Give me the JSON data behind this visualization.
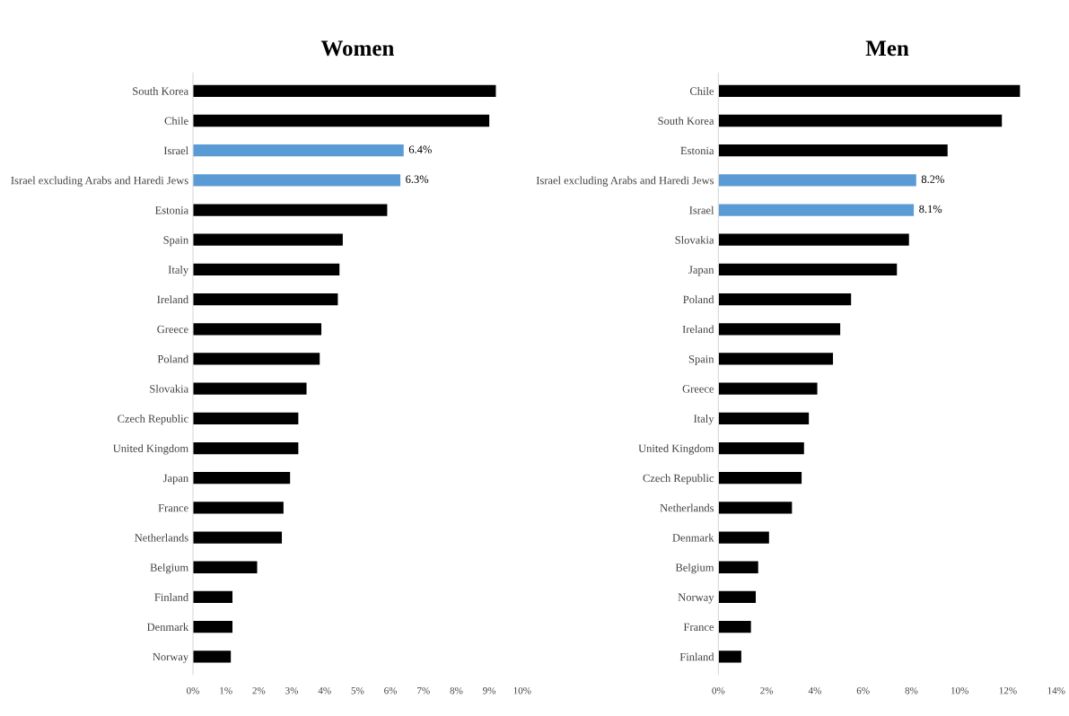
{
  "chart_data": [
    {
      "type": "bar",
      "orientation": "horizontal",
      "title": "Women",
      "categories": [
        "South Korea",
        "Chile",
        "Israel",
        "Israel excluding Arabs and Haredi Jews",
        "Estonia",
        "Spain",
        "Italy",
        "Ireland",
        "Greece",
        "Poland",
        "Slovakia",
        "Czech Republic",
        "United Kingdom",
        "Japan",
        "France",
        "Netherlands",
        "Belgium",
        "Finland",
        "Denmark",
        "Norway"
      ],
      "values": [
        9.2,
        9.0,
        6.4,
        6.3,
        5.9,
        4.55,
        4.45,
        4.4,
        3.9,
        3.85,
        3.45,
        3.2,
        3.2,
        2.95,
        2.75,
        2.7,
        1.95,
        1.2,
        1.2,
        1.15
      ],
      "colors": [
        "#000000",
        "#000000",
        "#5b9bd5",
        "#5b9bd5",
        "#000000",
        "#000000",
        "#000000",
        "#000000",
        "#000000",
        "#000000",
        "#000000",
        "#000000",
        "#000000",
        "#000000",
        "#000000",
        "#000000",
        "#000000",
        "#000000",
        "#000000",
        "#000000"
      ],
      "value_labels": [
        null,
        null,
        "6.4%",
        "6.3%",
        null,
        null,
        null,
        null,
        null,
        null,
        null,
        null,
        null,
        null,
        null,
        null,
        null,
        null,
        null,
        null
      ],
      "xlim": [
        0,
        10
      ],
      "xticks": [
        {
          "value": 0,
          "label": "0%"
        },
        {
          "value": 1,
          "label": "1%"
        },
        {
          "value": 2,
          "label": "2%"
        },
        {
          "value": 3,
          "label": "3%"
        },
        {
          "value": 4,
          "label": "4%"
        },
        {
          "value": 5,
          "label": "5%"
        },
        {
          "value": 6,
          "label": "6%"
        },
        {
          "value": 7,
          "label": "7%"
        },
        {
          "value": 8,
          "label": "8%"
        },
        {
          "value": 9,
          "label": "9%"
        },
        {
          "value": 10,
          "label": "10%"
        }
      ],
      "grid": false,
      "legend": false
    },
    {
      "type": "bar",
      "orientation": "horizontal",
      "title": "Men",
      "categories": [
        "Chile",
        "South Korea",
        "Estonia",
        "Israel excluding Arabs and Haredi Jews",
        "Israel",
        "Slovakia",
        "Japan",
        "Poland",
        "Ireland",
        "Spain",
        "Greece",
        "Italy",
        "United Kingdom",
        "Czech Republic",
        "Netherlands",
        "Denmark",
        "Belgium",
        "Norway",
        "France",
        "Finland"
      ],
      "values": [
        12.5,
        11.75,
        9.5,
        8.2,
        8.1,
        7.9,
        7.4,
        5.5,
        5.05,
        4.75,
        4.1,
        3.75,
        3.55,
        3.45,
        3.05,
        2.1,
        1.65,
        1.55,
        1.35,
        0.95
      ],
      "colors": [
        "#000000",
        "#000000",
        "#000000",
        "#5b9bd5",
        "#5b9bd5",
        "#000000",
        "#000000",
        "#000000",
        "#000000",
        "#000000",
        "#000000",
        "#000000",
        "#000000",
        "#000000",
        "#000000",
        "#000000",
        "#000000",
        "#000000",
        "#000000",
        "#000000"
      ],
      "value_labels": [
        null,
        null,
        null,
        "8.2%",
        "8.1%",
        null,
        null,
        null,
        null,
        null,
        null,
        null,
        null,
        null,
        null,
        null,
        null,
        null,
        null,
        null
      ],
      "xlim": [
        0,
        14
      ],
      "xticks": [
        {
          "value": 0,
          "label": "0%"
        },
        {
          "value": 2,
          "label": "2%"
        },
        {
          "value": 4,
          "label": "4%"
        },
        {
          "value": 6,
          "label": "6%"
        },
        {
          "value": 8,
          "label": "8%"
        },
        {
          "value": 10,
          "label": "10%"
        },
        {
          "value": 12,
          "label": "12%"
        },
        {
          "value": 14,
          "label": "14%"
        }
      ],
      "grid": false,
      "legend": false
    }
  ]
}
